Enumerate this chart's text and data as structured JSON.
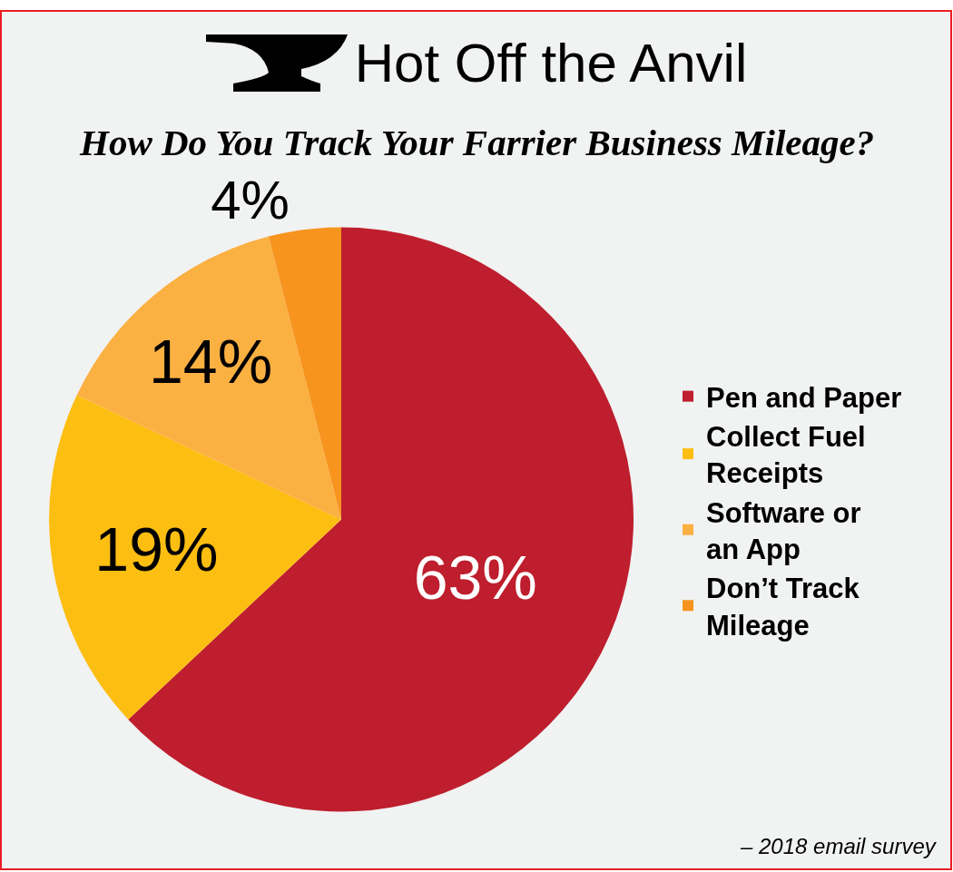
{
  "chart_data": {
    "type": "pie",
    "title": "Hot Off the Anvil",
    "subtitle": "How Do You Track Your Farrier Business Mileage?",
    "categories": [
      "Pen and Paper",
      "Collect Fuel Receipts",
      "Software or an App",
      "Don’t Track Mileage"
    ],
    "values": [
      63,
      19,
      14,
      4
    ],
    "colors": [
      "#be1e2d",
      "#fdbe12",
      "#fbb042",
      "#f7941e"
    ],
    "value_labels": [
      "63%",
      "19%",
      "14%",
      "4%"
    ],
    "legend": "right",
    "annotations": [
      "– 2018 email survey"
    ]
  }
}
